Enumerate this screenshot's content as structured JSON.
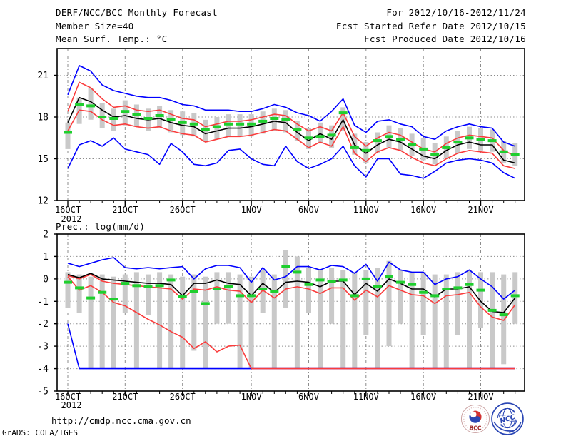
{
  "header": {
    "title": "DERF/NCC/BCC Monthly Forecast",
    "member_size": "Member Size=40",
    "for_period": "For 2012/10/16-2012/11/24",
    "refer_date": "Fcst Started Refer Date 2012/10/15",
    "produced_date": "Fcst Produced Date 2012/10/16"
  },
  "footer": {
    "url": "http://cmdp.ncc.cma.gov.cn",
    "grads_credit": "GrADS: COLA/IGES",
    "logos": [
      {
        "id": "bcc",
        "label": "BCC"
      },
      {
        "id": "ncc",
        "label": "NCC"
      }
    ]
  },
  "colors": {
    "extreme_line": "#0000ff",
    "spread_line": "#fa3c3c",
    "mean_line": "#000000",
    "climatology_marker": "#1fcf2e",
    "range_bar": "#c9c9c9",
    "gridline": "#8c8c8c",
    "axis": "#000000"
  },
  "chart_data": [
    {
      "type": "line",
      "id": "temperature",
      "title": "Mean Surf. Temp.: °C",
      "x_year_label": "2012",
      "n_days": 40,
      "x_ticks": [
        {
          "day": 0,
          "label": "16OCT"
        },
        {
          "day": 5,
          "label": "21OCT"
        },
        {
          "day": 10,
          "label": "26OCT"
        },
        {
          "day": 16,
          "label": "1NOV"
        },
        {
          "day": 21,
          "label": "6NOV"
        },
        {
          "day": 26,
          "label": "11NOV"
        },
        {
          "day": 31,
          "label": "16NOV"
        },
        {
          "day": 36,
          "label": "21NOV"
        }
      ],
      "y_ticks": [
        12,
        15,
        18,
        21
      ],
      "ylim": [
        12,
        22.9
      ],
      "series": [
        {
          "id": "ensemble-max",
          "name": "Ensemble Max (blue)",
          "color": "#0000ff",
          "values": [
            19.6,
            21.7,
            21.3,
            20.3,
            19.9,
            19.7,
            19.5,
            19.4,
            19.4,
            19.2,
            18.9,
            18.8,
            18.5,
            18.5,
            18.5,
            18.4,
            18.4,
            18.6,
            18.9,
            18.7,
            18.3,
            18.1,
            17.7,
            18.4,
            19.3,
            17.4,
            16.9,
            17.7,
            17.8,
            17.5,
            17.3,
            16.6,
            16.4,
            17.0,
            17.3,
            17.5,
            17.3,
            17.2,
            16.2,
            15.9
          ]
        },
        {
          "id": "ensemble-min",
          "name": "Ensemble Min (blue)",
          "color": "#0000ff",
          "values": [
            14.3,
            16.0,
            16.3,
            15.9,
            16.5,
            15.7,
            15.5,
            15.3,
            14.6,
            16.1,
            15.5,
            14.6,
            14.5,
            14.7,
            15.6,
            15.7,
            15.0,
            14.6,
            14.5,
            15.9,
            14.8,
            14.3,
            14.6,
            15.0,
            15.9,
            14.5,
            13.7,
            15.0,
            15.0,
            13.9,
            13.8,
            13.6,
            14.1,
            14.7,
            14.9,
            15.0,
            14.9,
            14.7,
            14.0,
            13.6
          ]
        },
        {
          "id": "spread-upper",
          "name": "Mean + spread (red)",
          "color": "#fa3c3c",
          "values": [
            18.4,
            20.5,
            20.1,
            19.3,
            18.7,
            18.8,
            18.5,
            18.4,
            18.5,
            18.2,
            17.9,
            17.8,
            17.3,
            17.5,
            17.7,
            17.7,
            17.8,
            18.0,
            18.2,
            18.1,
            17.5,
            17.0,
            17.3,
            17.0,
            18.3,
            16.6,
            15.9,
            16.5,
            16.9,
            16.7,
            16.2,
            15.7,
            15.5,
            16.1,
            16.5,
            16.7,
            16.6,
            16.5,
            15.6,
            15.2
          ]
        },
        {
          "id": "spread-lower",
          "name": "Mean - spread (red)",
          "color": "#fa3c3c",
          "values": [
            17.0,
            18.5,
            18.4,
            17.8,
            17.4,
            17.5,
            17.3,
            17.2,
            17.3,
            17.0,
            16.8,
            16.7,
            16.2,
            16.4,
            16.6,
            16.6,
            16.7,
            16.9,
            17.1,
            17.0,
            16.4,
            15.8,
            16.2,
            15.9,
            17.3,
            15.4,
            14.8,
            15.5,
            15.8,
            15.6,
            15.1,
            14.7,
            14.5,
            15.0,
            15.4,
            15.6,
            15.5,
            15.4,
            14.5,
            14.3
          ]
        },
        {
          "id": "ensemble-mean",
          "name": "Ensemble Mean (black)",
          "color": "#000000",
          "values": [
            17.6,
            19.4,
            19.1,
            18.5,
            18.0,
            18.1,
            17.9,
            17.8,
            17.9,
            17.6,
            17.4,
            17.3,
            16.8,
            17.0,
            17.2,
            17.2,
            17.3,
            17.5,
            17.7,
            17.6,
            16.9,
            16.3,
            16.8,
            16.4,
            17.8,
            16.0,
            15.4,
            16.0,
            16.4,
            16.2,
            15.7,
            15.2,
            15.0,
            15.6,
            16.0,
            16.2,
            16.0,
            16.0,
            14.9,
            14.7
          ]
        }
      ],
      "markers": {
        "id": "climatology",
        "name": "Climatology (green dash)",
        "color": "#1fcf2e",
        "values": [
          16.9,
          18.9,
          18.8,
          18.0,
          17.9,
          18.4,
          18.2,
          17.9,
          18.1,
          17.8,
          17.6,
          17.5,
          17.1,
          17.3,
          17.5,
          17.5,
          17.5,
          17.7,
          17.9,
          17.8,
          17.1,
          16.5,
          16.6,
          16.7,
          18.3,
          15.8,
          15.6,
          16.3,
          16.6,
          16.4,
          16.0,
          15.7,
          15.3,
          15.8,
          16.2,
          16.5,
          16.4,
          16.3,
          15.5,
          15.3
        ]
      },
      "bars": {
        "id": "range-bar",
        "name": "Ensemble spread bar (gray)",
        "color": "#c9c9c9",
        "ranges": [
          [
            15.7,
            17.6
          ],
          [
            17.5,
            19.4
          ],
          [
            17.8,
            20.1
          ],
          [
            17.2,
            19.0
          ],
          [
            17.0,
            18.6
          ],
          [
            17.4,
            19.2
          ],
          [
            17.3,
            18.9
          ],
          [
            17.0,
            18.6
          ],
          [
            17.2,
            18.8
          ],
          [
            16.9,
            18.5
          ],
          [
            16.7,
            18.4
          ],
          [
            16.6,
            18.3
          ],
          [
            16.2,
            17.8
          ],
          [
            16.4,
            18.0
          ],
          [
            16.6,
            18.2
          ],
          [
            16.6,
            18.2
          ],
          [
            16.6,
            18.2
          ],
          [
            16.8,
            18.4
          ],
          [
            17.0,
            18.6
          ],
          [
            16.9,
            18.5
          ],
          [
            16.3,
            17.7
          ],
          [
            15.7,
            17.2
          ],
          [
            16.1,
            17.6
          ],
          [
            15.8,
            17.4
          ],
          [
            17.0,
            18.7
          ],
          [
            15.3,
            16.8
          ],
          [
            14.7,
            16.2
          ],
          [
            15.4,
            16.9
          ],
          [
            15.8,
            17.4
          ],
          [
            15.6,
            17.2
          ],
          [
            15.2,
            16.8
          ],
          [
            14.9,
            16.5
          ],
          [
            14.6,
            16.1
          ],
          [
            15.0,
            16.6
          ],
          [
            15.4,
            17.0
          ],
          [
            15.7,
            17.3
          ],
          [
            15.6,
            17.2
          ],
          [
            15.5,
            17.1
          ],
          [
            14.7,
            16.3
          ],
          [
            14.5,
            16.1
          ]
        ]
      }
    },
    {
      "type": "line",
      "id": "precipitation",
      "title": "Prec.: log(mm/d)",
      "x_year_label": "2012",
      "n_days": 40,
      "x_ticks": [
        {
          "day": 0,
          "label": "16OCT"
        },
        {
          "day": 5,
          "label": "21OCT"
        },
        {
          "day": 10,
          "label": "26OCT"
        },
        {
          "day": 16,
          "label": "1NOV"
        },
        {
          "day": 21,
          "label": "6NOV"
        },
        {
          "day": 26,
          "label": "11NOV"
        },
        {
          "day": 31,
          "label": "16NOV"
        },
        {
          "day": 36,
          "label": "21NOV"
        }
      ],
      "y_ticks": [
        -5,
        -4,
        -3,
        -2,
        -1,
        0,
        1,
        2
      ],
      "ylim": [
        -5,
        2
      ],
      "series": [
        {
          "id": "ensemble-max",
          "name": "Ensemble Max (blue)",
          "color": "#0000ff",
          "values": [
            0.7,
            0.55,
            0.7,
            0.85,
            0.95,
            0.5,
            0.45,
            0.5,
            0.45,
            0.5,
            0.55,
            0.0,
            0.45,
            0.6,
            0.6,
            0.5,
            -0.15,
            0.5,
            -0.05,
            0.1,
            0.55,
            0.55,
            0.4,
            0.6,
            0.55,
            0.25,
            0.65,
            -0.1,
            0.75,
            0.4,
            0.3,
            0.3,
            -0.25,
            0.0,
            0.1,
            0.4,
            0.0,
            -0.35,
            -0.9,
            -0.5
          ]
        },
        {
          "id": "ensemble-min",
          "name": "Ensemble Min (blue)",
          "color": "#0000ff",
          "values": [
            -2.0,
            -4.0,
            -4.0,
            -4.0,
            -4.0,
            -4.0,
            -4.0,
            -4.0,
            -4.0,
            -4.0,
            -4.0,
            -4.0,
            -4.0,
            -4.0,
            -4.0,
            -4.0,
            -4.0,
            -4.0,
            -4.0,
            -4.0,
            -4.0,
            -4.0,
            -4.0,
            -4.0,
            -4.0,
            -4.0,
            -4.0,
            -4.0,
            -4.0,
            -4.0,
            -4.0,
            -4.0,
            -4.0,
            -4.0,
            -4.0,
            -4.0,
            -4.0,
            -4.0,
            -4.0,
            -4.0
          ]
        },
        {
          "id": "spread-upper",
          "name": "Mean + spread (red)",
          "color": "#fa3c3c",
          "values": [
            0.15,
            0.0,
            0.2,
            -0.1,
            -0.2,
            -0.25,
            -0.3,
            -0.35,
            -0.4,
            -0.45,
            -0.9,
            -0.45,
            -0.5,
            -0.35,
            -0.5,
            -0.55,
            -1.05,
            -0.5,
            -0.85,
            -0.45,
            -0.35,
            -0.45,
            -0.65,
            -0.4,
            -0.4,
            -0.95,
            -0.5,
            -0.8,
            -0.3,
            -0.5,
            -0.7,
            -0.75,
            -1.1,
            -0.75,
            -0.7,
            -0.6,
            -1.25,
            -1.7,
            -1.85,
            -1.15
          ]
        },
        {
          "id": "spread-lower",
          "name": "Mean - spread (red)",
          "color": "#fa3c3c",
          "values": [
            0.1,
            -0.5,
            -0.3,
            -0.6,
            -1.05,
            -1.2,
            -1.5,
            -1.8,
            -2.05,
            -2.35,
            -2.6,
            -3.1,
            -2.8,
            -3.25,
            -3.0,
            -2.95,
            -4.0,
            -4.0,
            -4.0,
            -4.0,
            -4.0,
            -4.0,
            -4.0,
            -4.0,
            -4.0,
            -4.0,
            -4.0,
            -4.0,
            -4.0,
            -4.0,
            -4.0,
            -4.0,
            -4.0,
            -4.0,
            -4.0,
            -4.0,
            -4.0,
            -4.0,
            -4.0,
            -4.0
          ]
        },
        {
          "id": "ensemble-mean",
          "name": "Ensemble Mean (black)",
          "color": "#000000",
          "values": [
            0.2,
            0.05,
            0.25,
            0.0,
            -0.05,
            -0.1,
            -0.15,
            -0.2,
            -0.2,
            -0.25,
            -0.75,
            -0.2,
            -0.2,
            -0.05,
            -0.2,
            -0.25,
            -0.75,
            -0.2,
            -0.6,
            -0.15,
            -0.1,
            -0.15,
            -0.35,
            -0.1,
            -0.1,
            -0.7,
            -0.2,
            -0.55,
            0.0,
            -0.2,
            -0.45,
            -0.45,
            -0.8,
            -0.45,
            -0.45,
            -0.35,
            -1.0,
            -1.45,
            -1.5,
            -0.85
          ]
        }
      ],
      "markers": {
        "id": "climatology",
        "name": "Climatology (green dash)",
        "color": "#1fcf2e",
        "values": [
          -0.15,
          -0.4,
          -0.85,
          -0.6,
          -0.9,
          -0.2,
          -0.3,
          -0.35,
          -0.3,
          -0.05,
          -0.8,
          -0.55,
          -1.1,
          -0.45,
          -0.35,
          -0.75,
          -0.75,
          -0.45,
          -0.55,
          0.55,
          0.3,
          -0.25,
          -0.05,
          -0.1,
          -0.05,
          -0.75,
          0.0,
          -0.35,
          0.1,
          -0.15,
          -0.25,
          -0.6,
          -0.75,
          -0.45,
          -0.4,
          -0.25,
          -0.5,
          -1.4,
          -1.6,
          -0.75
        ]
      },
      "bars": {
        "id": "range-bar",
        "name": "Ensemble spread bar (gray)",
        "color": "#c9c9c9",
        "ranges": [
          [
            -1.3,
            0.3
          ],
          [
            -1.5,
            0.2
          ],
          [
            -4,
            0.1
          ],
          [
            -4,
            0.2
          ],
          [
            -4,
            0.1
          ],
          [
            -1.5,
            0.2
          ],
          [
            -4,
            0.3
          ],
          [
            -1.6,
            0.2
          ],
          [
            -4,
            0.3
          ],
          [
            -4,
            0.2
          ],
          [
            -4,
            0.1
          ],
          [
            -3.2,
            0.2
          ],
          [
            -4,
            0.1
          ],
          [
            -2,
            0.3
          ],
          [
            -2,
            0.3
          ],
          [
            -4,
            0.2
          ],
          [
            -4,
            0.1
          ],
          [
            -1.5,
            0.4
          ],
          [
            -4,
            0.2
          ],
          [
            -1.3,
            1.3
          ],
          [
            -4,
            1.0
          ],
          [
            -1.5,
            0.5
          ],
          [
            -4,
            0.4
          ],
          [
            -2,
            0.5
          ],
          [
            -4,
            0.4
          ],
          [
            -4,
            0.3
          ],
          [
            -2.5,
            0.4
          ],
          [
            -4,
            0.5
          ],
          [
            -3,
            0.8
          ],
          [
            -2,
            0.4
          ],
          [
            -4,
            0.3
          ],
          [
            -2.5,
            0.3
          ],
          [
            -4,
            0.2
          ],
          [
            -4,
            0.2
          ],
          [
            -2.5,
            0.3
          ],
          [
            -4,
            0.4
          ],
          [
            -2.2,
            0.3
          ],
          [
            -4,
            0.3
          ],
          [
            -3.8,
            0.2
          ],
          [
            -2,
            0.3
          ]
        ]
      }
    }
  ]
}
